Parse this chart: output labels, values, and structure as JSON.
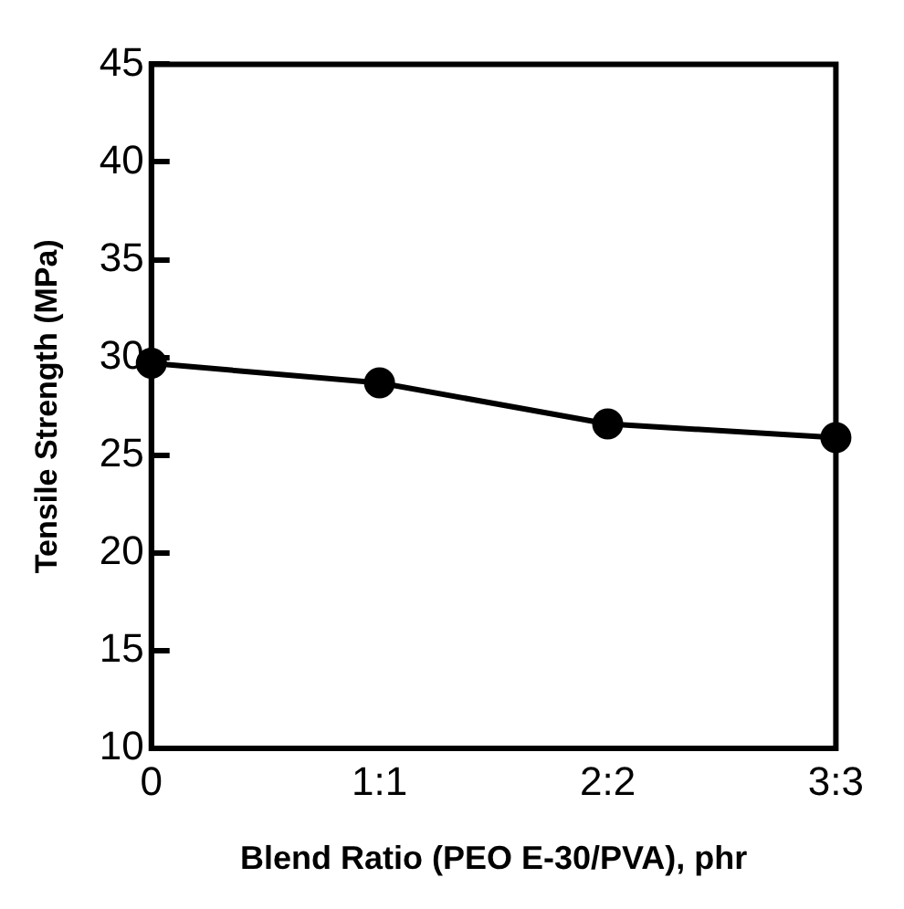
{
  "chart_data": {
    "type": "line",
    "xlabel": "Blend Ratio (PEO E-30/PVA), phr",
    "ylabel": "Tensile Strength (MPa)",
    "categories": [
      "0",
      "1:1",
      "2:2",
      "3:3"
    ],
    "series": [
      {
        "color": "#000000",
        "values": [
          29.7,
          28.7,
          26.6,
          25.9
        ]
      }
    ],
    "ylim": [
      10,
      45
    ],
    "yticks": [
      10,
      15,
      20,
      25,
      30,
      35,
      40,
      45
    ],
    "grid": false,
    "legend": false,
    "marker": "circle",
    "line_style": "solid"
  }
}
